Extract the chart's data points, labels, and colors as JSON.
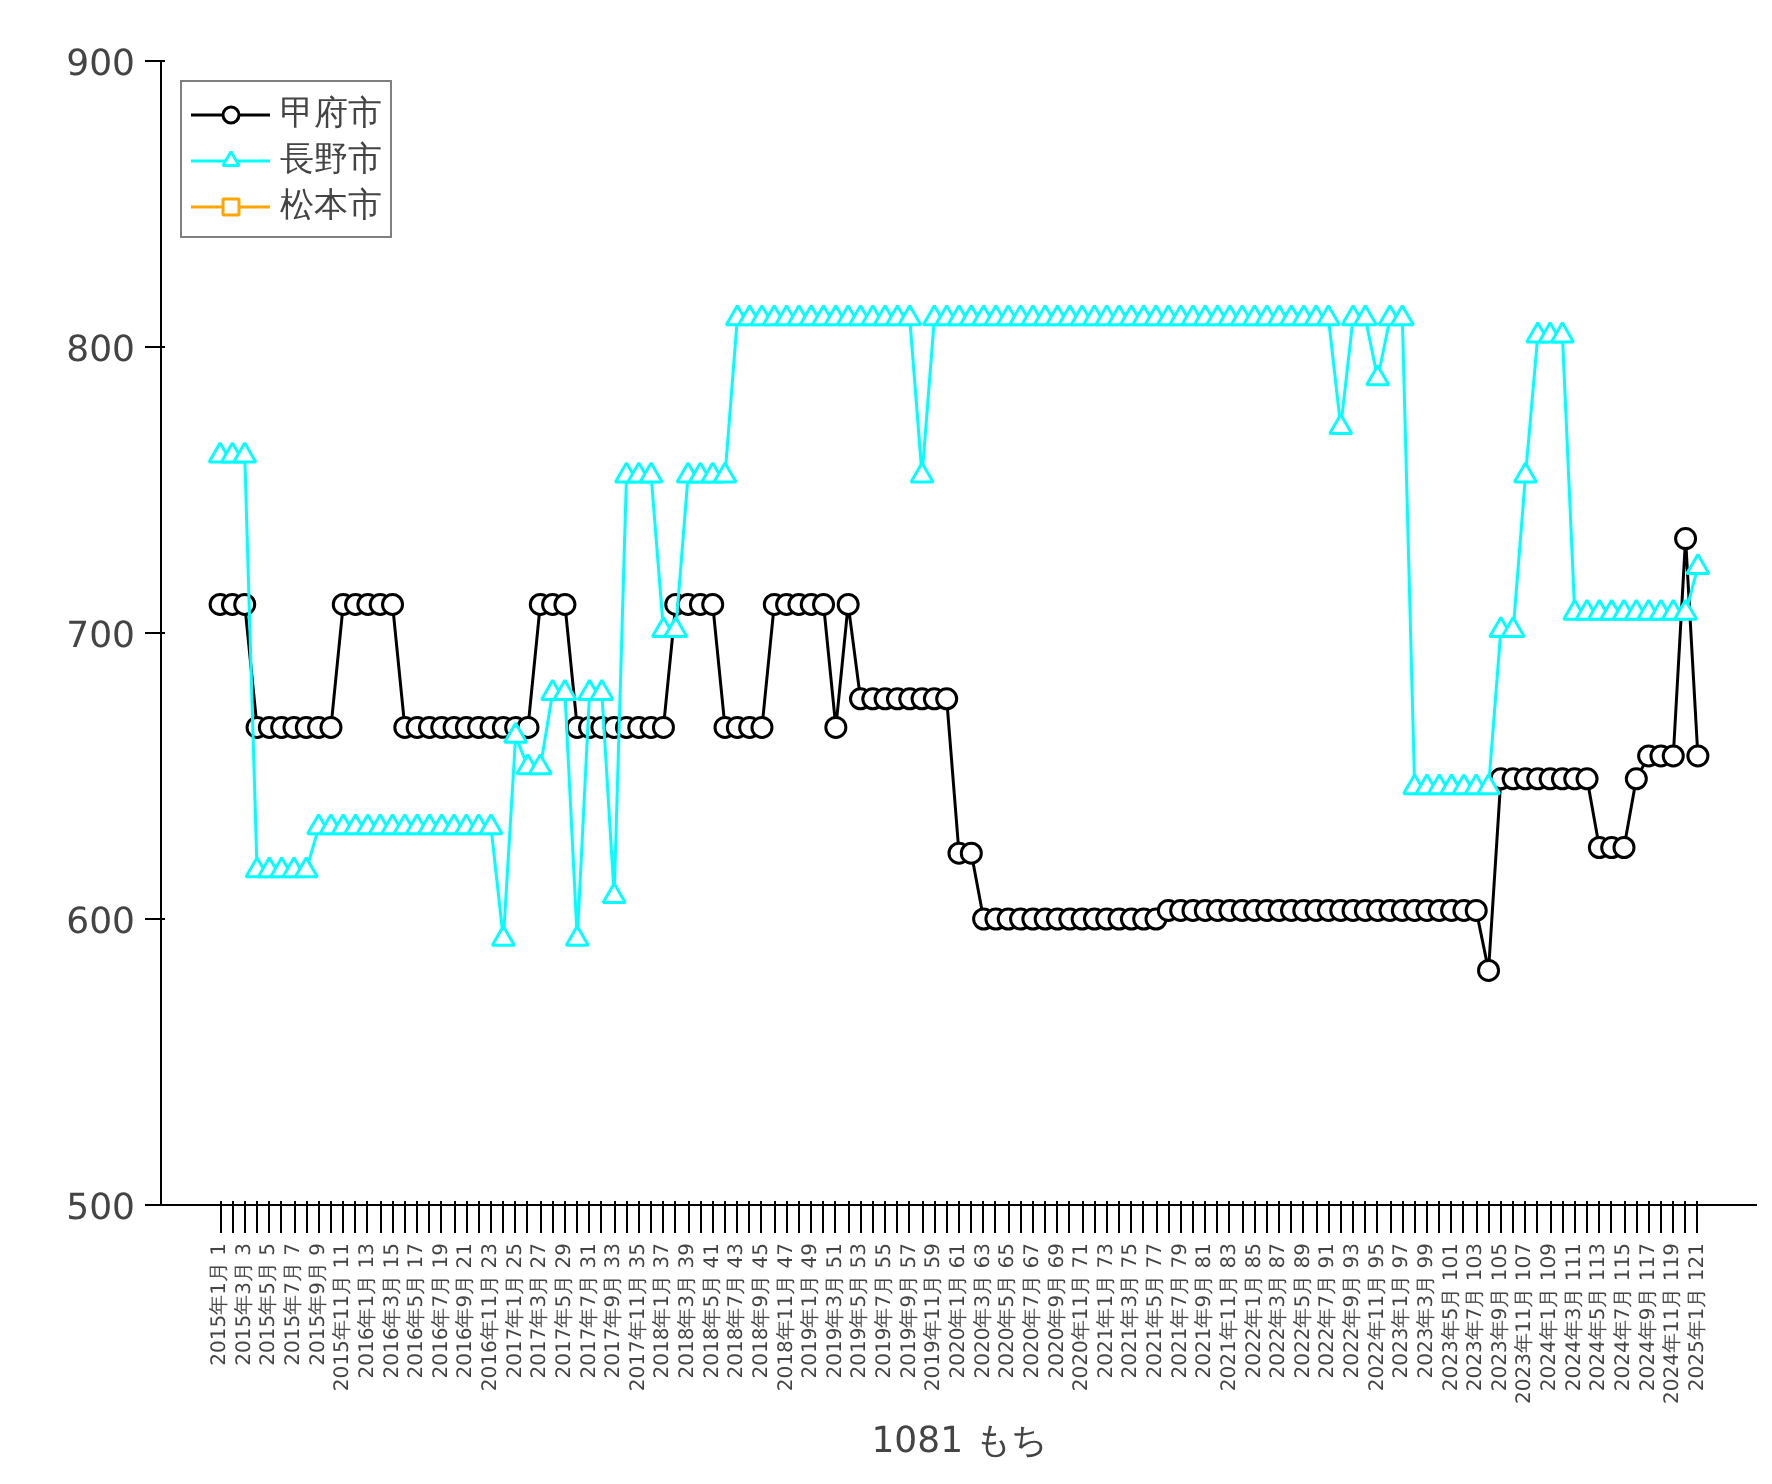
{
  "chart_data": {
    "type": "line",
    "xlabel": "1081 もち",
    "categories": [
      "2015年1月 1",
      null,
      "2015年3月 3",
      null,
      "2015年5月 5",
      null,
      "2015年7月 7",
      null,
      "2015年9月 9",
      null,
      "2015年11月 11",
      null,
      "2016年1月 13",
      null,
      "2016年3月 15",
      null,
      "2016年5月 17",
      null,
      "2016年7月 19",
      null,
      "2016年9月 21",
      null,
      "2016年11月 23",
      null,
      "2017年1月 25",
      null,
      "2017年3月 27",
      null,
      "2017年5月 29",
      null,
      "2017年7月 31",
      null,
      "2017年9月 33",
      null,
      "2017年11月 35",
      null,
      "2018年1月 37",
      null,
      "2018年3月 39",
      null,
      "2018年5月 41",
      null,
      "2018年7月 43",
      null,
      "2018年9月 45",
      null,
      "2018年11月 47",
      null,
      "2019年1月 49",
      null,
      "2019年3月 51",
      null,
      "2019年5月 53",
      null,
      "2019年7月 55",
      null,
      "2019年9月 57",
      null,
      "2019年11月 59",
      null,
      "2020年1月 61",
      null,
      "2020年3月 63",
      null,
      "2020年5月 65",
      null,
      "2020年7月 67",
      null,
      "2020年9月 69",
      null,
      "2020年11月 71",
      null,
      "2021年1月 73",
      null,
      "2021年3月 75",
      null,
      "2021年5月 77",
      null,
      "2021年7月 79",
      null,
      "2021年9月 81",
      null,
      "2021年11月 83",
      null,
      "2022年1月 85",
      null,
      "2022年3月 87",
      null,
      "2022年5月 89",
      null,
      "2022年7月 91",
      null,
      "2022年9月 93",
      null,
      "2022年11月 95",
      null,
      "2023年1月 97",
      null,
      "2023年3月 99",
      null,
      "2023年5月 101",
      null,
      "2023年7月 103",
      null,
      "2023年9月 105",
      null,
      "2023年11月 107",
      null,
      "2024年1月 109",
      null,
      "2024年3月 111",
      null,
      "2024年5月 113",
      null,
      "2024年7月 115",
      null,
      "2024年9月 117",
      null,
      "2024年11月 119",
      null,
      "2025年1月 121"
    ],
    "series": [
      {
        "name": "甲府市",
        "color": "#000000",
        "marker": "circle",
        "values": [
          710,
          710,
          710,
          667,
          667,
          667,
          667,
          667,
          667,
          667,
          710,
          710,
          710,
          710,
          710,
          667,
          667,
          667,
          667,
          667,
          667,
          667,
          667,
          667,
          667,
          667,
          710,
          710,
          710,
          667,
          667,
          667,
          667,
          667,
          667,
          667,
          667,
          710,
          710,
          710,
          710,
          667,
          667,
          667,
          667,
          710,
          710,
          710,
          710,
          710,
          667,
          710,
          677,
          677,
          677,
          677,
          677,
          677,
          677,
          677,
          623,
          623,
          600,
          600,
          600,
          600,
          600,
          600,
          600,
          600,
          600,
          600,
          600,
          600,
          600,
          600,
          600,
          603,
          603,
          603,
          603,
          603,
          603,
          603,
          603,
          603,
          603,
          603,
          603,
          603,
          603,
          603,
          603,
          603,
          603,
          603,
          603,
          603,
          603,
          603,
          603,
          603,
          603,
          582,
          649,
          649,
          649,
          649,
          649,
          649,
          649,
          649,
          625,
          625,
          625,
          649,
          657,
          657,
          657,
          733,
          657
        ]
      },
      {
        "name": "長野市",
        "color": "#00ffff",
        "marker": "triangle",
        "values": [
          762,
          762,
          762,
          617,
          617,
          617,
          617,
          617,
          632,
          632,
          632,
          632,
          632,
          632,
          632,
          632,
          632,
          632,
          632,
          632,
          632,
          632,
          632,
          593,
          664,
          653,
          653,
          679,
          679,
          593,
          679,
          679,
          608,
          755,
          755,
          755,
          701,
          701,
          755,
          755,
          755,
          755,
          810,
          810,
          810,
          810,
          810,
          810,
          810,
          810,
          810,
          810,
          810,
          810,
          810,
          810,
          810,
          755,
          810,
          810,
          810,
          810,
          810,
          810,
          810,
          810,
          810,
          810,
          810,
          810,
          810,
          810,
          810,
          810,
          810,
          810,
          810,
          810,
          810,
          810,
          810,
          810,
          810,
          810,
          810,
          810,
          810,
          810,
          810,
          810,
          810,
          772,
          810,
          810,
          789,
          810,
          810,
          646,
          646,
          646,
          646,
          646,
          646,
          646,
          701,
          701,
          755,
          804,
          804,
          804,
          707,
          707,
          707,
          707,
          707,
          707,
          707,
          707,
          707,
          707,
          723
        ]
      },
      {
        "name": "松本市",
        "color": "#ffa500",
        "marker": "square",
        "values": [
          null,
          null,
          null,
          null,
          null,
          null,
          null,
          null,
          null,
          null,
          null,
          null,
          null,
          null,
          null,
          null,
          null,
          null,
          null,
          null,
          null,
          null,
          null,
          null,
          null,
          null,
          null,
          null,
          null,
          null,
          null,
          null,
          null,
          null,
          null,
          null,
          null,
          null,
          null,
          null,
          null,
          null,
          null,
          null,
          null,
          null,
          null,
          null,
          null,
          null,
          null,
          null,
          null,
          null,
          null,
          null,
          null,
          null,
          null,
          null,
          null,
          null,
          null,
          null,
          null,
          null,
          null,
          null,
          null,
          null,
          null,
          null,
          null,
          null,
          null,
          null,
          null,
          null,
          null,
          null,
          null,
          null,
          null,
          null,
          null,
          null,
          null,
          null,
          null,
          null,
          null,
          null,
          null,
          null,
          null,
          null,
          null,
          null,
          null,
          null,
          null,
          null,
          null,
          null,
          null,
          null,
          null,
          null,
          null,
          null,
          null,
          null,
          null,
          null,
          null,
          null,
          null,
          null,
          null,
          null,
          null
        ]
      }
    ],
    "ylim": [
      500,
      900
    ],
    "yticks": [
      500,
      600,
      700,
      800,
      900
    ],
    "grid": false,
    "legend": "top left"
  }
}
